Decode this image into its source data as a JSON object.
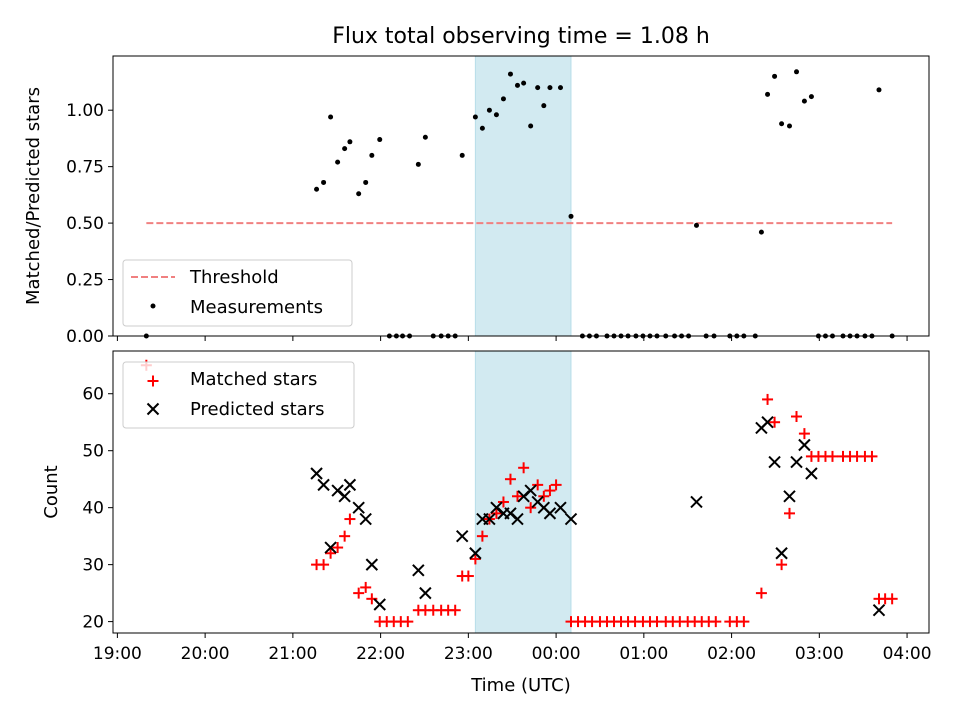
{
  "chart_data": [
    {
      "type": "scatter",
      "title": "Flux total observing time = 1.08 h",
      "ylabel": "Matched/Predicted stars",
      "xlabel": "",
      "x_unit": "hours since 19:00 UTC",
      "xlim": [
        -0.05,
        9.25
      ],
      "ylim": [
        0,
        1.24
      ],
      "yticks": [
        0.0,
        0.25,
        0.5,
        0.75,
        1.0
      ],
      "ytick_labels": [
        "0.00",
        "0.25",
        "0.50",
        "0.75",
        "1.00"
      ],
      "legend_position": "lower-left",
      "shaded_span": {
        "start": 4.08,
        "end": 5.17,
        "color": "#add8e6"
      },
      "threshold": {
        "name": "Threshold",
        "value": 0.5,
        "x_start": 0.33,
        "x_end": 8.83,
        "color": "#f08080"
      },
      "series": [
        {
          "name": "Measurements",
          "color": "#000000",
          "points": [
            [
              0.33,
              0.0
            ],
            [
              2.27,
              0.65
            ],
            [
              2.35,
              0.68
            ],
            [
              2.43,
              0.97
            ],
            [
              2.51,
              0.77
            ],
            [
              2.59,
              0.83
            ],
            [
              2.65,
              0.86
            ],
            [
              2.75,
              0.63
            ],
            [
              2.83,
              0.68
            ],
            [
              2.9,
              0.8
            ],
            [
              2.99,
              0.87
            ],
            [
              3.1,
              0.0
            ],
            [
              3.18,
              0.0
            ],
            [
              3.25,
              0.0
            ],
            [
              3.33,
              0.0
            ],
            [
              3.43,
              0.76
            ],
            [
              3.51,
              0.88
            ],
            [
              3.6,
              0.0
            ],
            [
              3.69,
              0.0
            ],
            [
              3.77,
              0.0
            ],
            [
              3.85,
              0.0
            ],
            [
              3.93,
              0.8
            ],
            [
              4.08,
              0.97
            ],
            [
              4.16,
              0.92
            ],
            [
              4.24,
              1.0
            ],
            [
              4.32,
              0.98
            ],
            [
              4.4,
              1.05
            ],
            [
              4.48,
              1.16
            ],
            [
              4.56,
              1.11
            ],
            [
              4.63,
              1.12
            ],
            [
              4.71,
              0.93
            ],
            [
              4.79,
              1.1
            ],
            [
              4.86,
              1.02
            ],
            [
              4.93,
              1.1
            ],
            [
              5.05,
              1.1
            ],
            [
              5.17,
              0.53
            ],
            [
              5.3,
              0.0
            ],
            [
              5.38,
              0.0
            ],
            [
              5.46,
              0.0
            ],
            [
              5.58,
              0.0
            ],
            [
              5.66,
              0.0
            ],
            [
              5.74,
              0.0
            ],
            [
              5.82,
              0.0
            ],
            [
              5.91,
              0.0
            ],
            [
              5.99,
              0.0
            ],
            [
              6.07,
              0.0
            ],
            [
              6.15,
              0.0
            ],
            [
              6.25,
              0.0
            ],
            [
              6.35,
              0.0
            ],
            [
              6.43,
              0.0
            ],
            [
              6.51,
              0.0
            ],
            [
              6.6,
              0.49
            ],
            [
              6.71,
              0.0
            ],
            [
              6.8,
              0.0
            ],
            [
              6.98,
              0.0
            ],
            [
              7.06,
              0.0
            ],
            [
              7.14,
              0.0
            ],
            [
              7.27,
              0.0
            ],
            [
              7.34,
              0.46
            ],
            [
              7.41,
              1.07
            ],
            [
              7.49,
              1.15
            ],
            [
              7.57,
              0.94
            ],
            [
              7.66,
              0.93
            ],
            [
              7.74,
              1.17
            ],
            [
              7.83,
              1.04
            ],
            [
              7.91,
              1.06
            ],
            [
              7.99,
              0.0
            ],
            [
              8.07,
              0.0
            ],
            [
              8.15,
              0.0
            ],
            [
              8.27,
              0.0
            ],
            [
              8.35,
              0.0
            ],
            [
              8.43,
              0.0
            ],
            [
              8.52,
              0.0
            ],
            [
              8.6,
              0.0
            ],
            [
              8.68,
              1.09
            ],
            [
              8.83,
              0.0
            ]
          ]
        }
      ]
    },
    {
      "type": "scatter",
      "title": "",
      "ylabel": "Count",
      "xlabel": "Time (UTC)",
      "x_unit": "hours since 19:00 UTC",
      "xlim": [
        -0.05,
        9.25
      ],
      "ylim": [
        18,
        67.5
      ],
      "yticks": [
        20,
        30,
        40,
        50,
        60
      ],
      "ytick_labels": [
        "20",
        "30",
        "40",
        "50",
        "60"
      ],
      "xticks": [
        0,
        1,
        2,
        3,
        4,
        5,
        6,
        7,
        8,
        9
      ],
      "xtick_labels": [
        "19:00",
        "20:00",
        "21:00",
        "22:00",
        "23:00",
        "00:00",
        "01:00",
        "02:00",
        "03:00",
        "04:00"
      ],
      "legend_position": "top-left",
      "shaded_span": {
        "start": 4.08,
        "end": 5.17,
        "color": "#add8e6"
      },
      "series": [
        {
          "name": "Matched stars",
          "marker": "plus",
          "color": "#ff0000",
          "points": [
            [
              0.33,
              65
            ],
            [
              2.27,
              30
            ],
            [
              2.35,
              30
            ],
            [
              2.43,
              32
            ],
            [
              2.51,
              33
            ],
            [
              2.59,
              35
            ],
            [
              2.65,
              38
            ],
            [
              2.75,
              25
            ],
            [
              2.83,
              26
            ],
            [
              2.9,
              24
            ],
            [
              2.99,
              20
            ],
            [
              3.07,
              20
            ],
            [
              3.15,
              20
            ],
            [
              3.23,
              20
            ],
            [
              3.31,
              20
            ],
            [
              3.43,
              22
            ],
            [
              3.51,
              22
            ],
            [
              3.6,
              22
            ],
            [
              3.69,
              22
            ],
            [
              3.77,
              22
            ],
            [
              3.85,
              22
            ],
            [
              3.93,
              28
            ],
            [
              4.0,
              28
            ],
            [
              4.08,
              31
            ],
            [
              4.16,
              35
            ],
            [
              4.24,
              38
            ],
            [
              4.32,
              39
            ],
            [
              4.4,
              41
            ],
            [
              4.48,
              45
            ],
            [
              4.56,
              42
            ],
            [
              4.63,
              47
            ],
            [
              4.71,
              40
            ],
            [
              4.79,
              44
            ],
            [
              4.86,
              42
            ],
            [
              4.93,
              43
            ],
            [
              5.0,
              44
            ],
            [
              5.17,
              20
            ],
            [
              5.25,
              20
            ],
            [
              5.33,
              20
            ],
            [
              5.41,
              20
            ],
            [
              5.5,
              20
            ],
            [
              5.58,
              20
            ],
            [
              5.66,
              20
            ],
            [
              5.74,
              20
            ],
            [
              5.82,
              20
            ],
            [
              5.9,
              20
            ],
            [
              5.99,
              20
            ],
            [
              6.07,
              20
            ],
            [
              6.15,
              20
            ],
            [
              6.25,
              20
            ],
            [
              6.33,
              20
            ],
            [
              6.41,
              20
            ],
            [
              6.5,
              20
            ],
            [
              6.58,
              20
            ],
            [
              6.66,
              20
            ],
            [
              6.74,
              20
            ],
            [
              6.82,
              20
            ],
            [
              6.98,
              20
            ],
            [
              7.06,
              20
            ],
            [
              7.14,
              20
            ],
            [
              7.34,
              25
            ],
            [
              7.41,
              59
            ],
            [
              7.49,
              55
            ],
            [
              7.57,
              30
            ],
            [
              7.66,
              39
            ],
            [
              7.74,
              56
            ],
            [
              7.83,
              53
            ],
            [
              7.91,
              49
            ],
            [
              7.99,
              49
            ],
            [
              8.07,
              49
            ],
            [
              8.15,
              49
            ],
            [
              8.27,
              49
            ],
            [
              8.35,
              49
            ],
            [
              8.43,
              49
            ],
            [
              8.52,
              49
            ],
            [
              8.6,
              49
            ],
            [
              8.68,
              24
            ],
            [
              8.75,
              24
            ],
            [
              8.83,
              24
            ]
          ]
        },
        {
          "name": "Predicted stars",
          "marker": "x",
          "color": "#000000",
          "points": [
            [
              2.27,
              46
            ],
            [
              2.35,
              44
            ],
            [
              2.43,
              33
            ],
            [
              2.51,
              43
            ],
            [
              2.59,
              42
            ],
            [
              2.65,
              44
            ],
            [
              2.75,
              40
            ],
            [
              2.83,
              38
            ],
            [
              2.9,
              30
            ],
            [
              2.99,
              23
            ],
            [
              3.43,
              29
            ],
            [
              3.51,
              25
            ],
            [
              3.93,
              35
            ],
            [
              4.08,
              32
            ],
            [
              4.16,
              38
            ],
            [
              4.24,
              38
            ],
            [
              4.32,
              40
            ],
            [
              4.4,
              39
            ],
            [
              4.48,
              39
            ],
            [
              4.56,
              38
            ],
            [
              4.63,
              42
            ],
            [
              4.71,
              43
            ],
            [
              4.79,
              41
            ],
            [
              4.86,
              40
            ],
            [
              4.93,
              39
            ],
            [
              5.05,
              40
            ],
            [
              5.17,
              38
            ],
            [
              6.6,
              41
            ],
            [
              7.34,
              54
            ],
            [
              7.41,
              55
            ],
            [
              7.49,
              48
            ],
            [
              7.57,
              32
            ],
            [
              7.66,
              42
            ],
            [
              7.74,
              48
            ],
            [
              7.83,
              51
            ],
            [
              7.91,
              46
            ],
            [
              8.68,
              22
            ]
          ]
        }
      ]
    }
  ]
}
